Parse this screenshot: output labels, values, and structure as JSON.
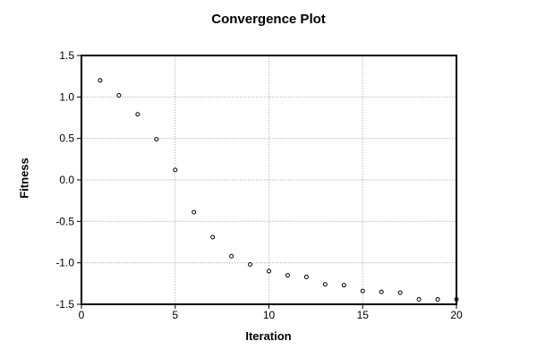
{
  "chart_data": {
    "type": "scatter",
    "title": "Convergence Plot",
    "xlabel": "Iteration",
    "ylabel": "Fitness",
    "x": [
      1,
      2,
      3,
      4,
      5,
      6,
      7,
      8,
      9,
      10,
      11,
      12,
      13,
      14,
      15,
      16,
      17,
      18,
      19,
      20
    ],
    "y": [
      1.2,
      1.02,
      0.79,
      0.49,
      0.12,
      -0.39,
      -0.69,
      -0.92,
      -1.02,
      -1.1,
      -1.15,
      -1.17,
      -1.26,
      -1.27,
      -1.34,
      -1.35,
      -1.36,
      -1.44,
      -1.44,
      -1.44
    ],
    "xlim": [
      0,
      20
    ],
    "ylim": [
      -1.5,
      1.5
    ],
    "x_ticks": [
      0,
      5,
      10,
      15,
      20
    ],
    "x_tick_labels": [
      "0",
      "5",
      "10",
      "15",
      "20"
    ],
    "y_ticks": [
      1.5,
      1.0,
      0.5,
      0.0,
      -0.5,
      -1.0,
      -1.5
    ],
    "y_tick_labels": [
      "1.5",
      "1.0",
      "0.5",
      "0.0",
      "-0.5",
      "-1.0",
      "-1.5"
    ],
    "grid": true,
    "legend_position": "none",
    "marker": "open-circle",
    "colors": {
      "marker_stroke": "#000000",
      "axis": "#000000",
      "grid": "#bcbcbc",
      "background": "#ffffff",
      "text": "#000000"
    }
  }
}
